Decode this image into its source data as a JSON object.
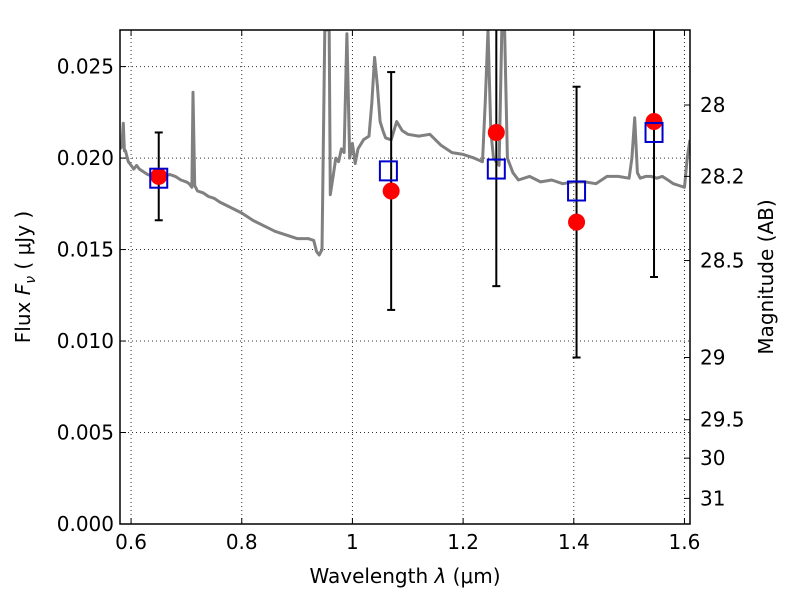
{
  "chart_data": {
    "type": "scatter",
    "title": "",
    "xlabel": "Wavelength  λ (μm)",
    "ylabel": "Flux  F_ν  ( μJy )",
    "y2label": "Magnitude (AB)",
    "xlim": [
      0.58,
      1.61
    ],
    "ylim": [
      0,
      0.027
    ],
    "grid": true,
    "x_ticks": [
      0.6,
      0.8,
      1.0,
      1.2,
      1.4,
      1.6
    ],
    "x_tick_labels": [
      "0.6",
      "0.8",
      "1",
      "1.2",
      "1.4",
      "1.6"
    ],
    "y_ticks": [
      0.0,
      0.005,
      0.01,
      0.015,
      0.02,
      0.025
    ],
    "y_tick_labels": [
      "0.000",
      "0.005",
      "0.010",
      "0.015",
      "0.020",
      "0.025"
    ],
    "y2_ticks": [
      {
        "label": "28",
        "flux": 0.0229
      },
      {
        "label": "28.2",
        "flux": 0.019
      },
      {
        "label": "28.5",
        "flux": 0.0144
      },
      {
        "label": "29",
        "flux": 0.0091
      },
      {
        "label": "29.5",
        "flux": 0.0057
      },
      {
        "label": "30",
        "flux": 0.0036
      },
      {
        "label": "31",
        "flux": 0.0014
      }
    ],
    "colors": {
      "spectrum": "#808080",
      "observed": "#ff0000",
      "model": "#0000cc",
      "errorbar": "#000000"
    },
    "series": [
      {
        "marker": "line",
        "x": [
          0.58,
          0.583,
          0.586,
          0.588,
          0.59,
          0.595,
          0.6,
          0.605,
          0.61,
          0.615,
          0.62,
          0.625,
          0.63,
          0.64,
          0.65,
          0.66,
          0.67,
          0.68,
          0.69,
          0.7,
          0.705,
          0.71,
          0.712,
          0.715,
          0.72,
          0.73,
          0.74,
          0.75,
          0.76,
          0.78,
          0.8,
          0.82,
          0.84,
          0.86,
          0.88,
          0.9,
          0.92,
          0.93,
          0.935,
          0.94,
          0.945,
          0.95,
          0.955,
          0.958,
          0.96,
          0.965,
          0.97,
          0.975,
          0.98,
          0.985,
          0.99,
          0.995,
          1.0,
          1.005,
          1.01,
          1.02,
          1.03,
          1.035,
          1.04,
          1.045,
          1.05,
          1.055,
          1.06,
          1.07,
          1.08,
          1.09,
          1.1,
          1.12,
          1.14,
          1.16,
          1.18,
          1.2,
          1.22,
          1.235,
          1.24,
          1.245,
          1.25,
          1.255,
          1.26,
          1.265,
          1.27,
          1.275,
          1.28,
          1.29,
          1.3,
          1.32,
          1.34,
          1.36,
          1.38,
          1.4,
          1.42,
          1.44,
          1.46,
          1.48,
          1.5,
          1.505,
          1.51,
          1.515,
          1.52,
          1.53,
          1.54,
          1.55,
          1.56,
          1.57,
          1.58,
          1.59,
          1.6,
          1.605,
          1.61
        ],
        "y": [
          0.0205,
          0.0206,
          0.0219,
          0.0204,
          0.0204,
          0.0198,
          0.0196,
          0.0194,
          0.0196,
          0.0194,
          0.0193,
          0.0192,
          0.0191,
          0.019,
          0.0188,
          0.019,
          0.0191,
          0.019,
          0.0188,
          0.0187,
          0.0186,
          0.0184,
          0.0236,
          0.0185,
          0.0182,
          0.0181,
          0.0179,
          0.0178,
          0.0176,
          0.0173,
          0.017,
          0.0166,
          0.0163,
          0.016,
          0.0158,
          0.0156,
          0.0156,
          0.0155,
          0.0149,
          0.0147,
          0.015,
          0.027,
          0.027,
          0.027,
          0.018,
          0.019,
          0.02,
          0.0198,
          0.0205,
          0.0203,
          0.0268,
          0.02,
          0.0208,
          0.0197,
          0.0205,
          0.021,
          0.0212,
          0.023,
          0.0255,
          0.024,
          0.022,
          0.0215,
          0.0211,
          0.021,
          0.022,
          0.0215,
          0.0213,
          0.0212,
          0.0213,
          0.0207,
          0.0203,
          0.0202,
          0.02,
          0.0198,
          0.023,
          0.027,
          0.0215,
          0.02,
          0.0198,
          0.0196,
          0.027,
          0.027,
          0.02,
          0.0192,
          0.0188,
          0.019,
          0.0187,
          0.0188,
          0.0186,
          0.0187,
          0.0187,
          0.0186,
          0.019,
          0.019,
          0.0189,
          0.02,
          0.0222,
          0.0192,
          0.0189,
          0.019,
          0.019,
          0.0189,
          0.019,
          0.0188,
          0.0186,
          0.0185,
          0.0184,
          0.02,
          0.021
        ]
      },
      {
        "marker": "circle",
        "x": [
          0.65,
          1.07,
          1.26,
          1.405,
          1.545
        ],
        "y": [
          0.019,
          0.0182,
          0.0214,
          0.0165,
          0.022
        ],
        "yerr": [
          0.0024,
          0.0065,
          0.0084,
          0.0074,
          0.0085
        ]
      },
      {
        "marker": "square",
        "x": [
          0.65,
          1.065,
          1.26,
          1.405,
          1.545
        ],
        "y": [
          0.0189,
          0.0193,
          0.0194,
          0.0182,
          0.0214
        ]
      }
    ]
  }
}
